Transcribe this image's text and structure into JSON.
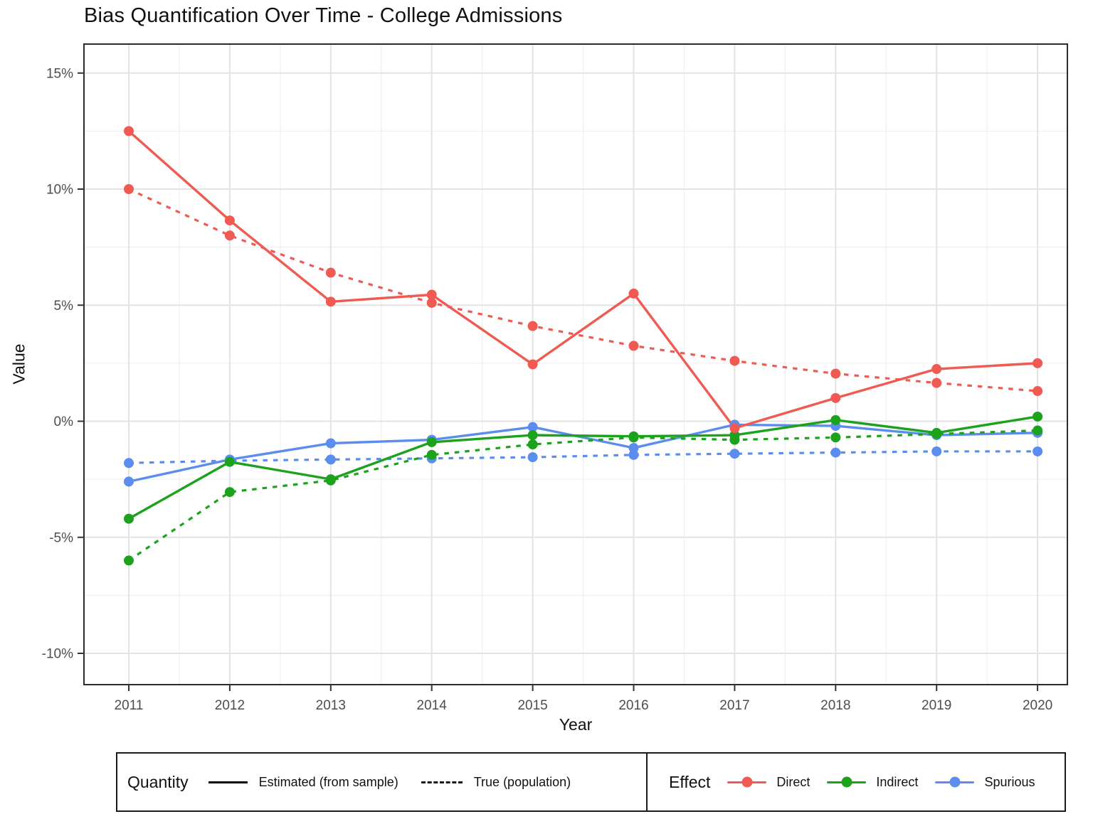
{
  "title": "Bias Quantification Over Time - College Admissions",
  "axes": {
    "x_title": "Year",
    "y_title": "Value"
  },
  "chart_data": {
    "type": "line",
    "title": "Bias Quantification Over Time - College Admissions",
    "xlabel": "Year",
    "ylabel": "Value",
    "x": [
      2011,
      2012,
      2013,
      2014,
      2015,
      2016,
      2017,
      2018,
      2019,
      2020
    ],
    "x_tick_labels": [
      "2011",
      "2012",
      "2013",
      "2014",
      "2015",
      "2016",
      "2017",
      "2018",
      "2019",
      "2020"
    ],
    "y_ticks": [
      15,
      10,
      5,
      0,
      -5,
      -10
    ],
    "y_tick_labels": [
      "15%",
      "10%",
      "5%",
      "0%",
      "-5%",
      "-10%"
    ],
    "ylim": [
      -11.4,
      16.3
    ],
    "grid": {
      "major": true,
      "minor": true
    },
    "legend_position": "bottom",
    "unit": "percent",
    "series": [
      {
        "effect": "Direct",
        "quantity": "Estimated (from sample)",
        "line": "solid",
        "color": "#EF5B52",
        "values": [
          12.5,
          8.65,
          5.15,
          5.45,
          2.45,
          5.5,
          -0.3,
          1.0,
          2.25,
          2.5
        ]
      },
      {
        "effect": "Direct",
        "quantity": "True (population)",
        "line": "dashed",
        "color": "#EF5B52",
        "values": [
          10.0,
          8.0,
          6.4,
          5.1,
          4.1,
          3.25,
          2.6,
          2.05,
          1.65,
          1.3
        ]
      },
      {
        "effect": "Indirect",
        "quantity": "Estimated (from sample)",
        "line": "solid",
        "color": "#1CA21C",
        "values": [
          -4.2,
          -1.75,
          -2.5,
          -0.9,
          -0.6,
          -0.65,
          -0.6,
          0.05,
          -0.5,
          0.2
        ]
      },
      {
        "effect": "Indirect",
        "quantity": "True (population)",
        "line": "dashed",
        "color": "#1CA21C",
        "values": [
          -6.0,
          -3.05,
          -2.55,
          -1.45,
          -1.0,
          -0.7,
          -0.8,
          -0.7,
          -0.55,
          -0.4
        ]
      },
      {
        "effect": "Spurious",
        "quantity": "Estimated (from sample)",
        "line": "solid",
        "color": "#5A8DEE",
        "values": [
          -2.6,
          -1.65,
          -0.95,
          -0.8,
          -0.25,
          -1.15,
          -0.15,
          -0.2,
          -0.6,
          -0.5
        ]
      },
      {
        "effect": "Spurious",
        "quantity": "True (population)",
        "line": "dashed",
        "color": "#5A8DEE",
        "values": [
          -1.8,
          -1.7,
          -1.65,
          -1.6,
          -1.55,
          -1.45,
          -1.4,
          -1.35,
          -1.3,
          -1.3
        ]
      }
    ]
  },
  "legend": {
    "quantity": {
      "title": "Quantity",
      "items": [
        {
          "label": "Estimated (from sample)",
          "style": "solid"
        },
        {
          "label": "True (population)",
          "style": "dashed"
        }
      ]
    },
    "effect": {
      "title": "Effect",
      "items": [
        {
          "label": "Direct",
          "color": "#EF5B52"
        },
        {
          "label": "Indirect",
          "color": "#1CA21C"
        },
        {
          "label": "Spurious",
          "color": "#5A8DEE"
        }
      ]
    }
  },
  "colors": {
    "grid_major": "#E3E3E3",
    "grid_minor": "#F0F0F0",
    "panel_border": "#2b2b2b",
    "tick_label": "#4D4D4D"
  }
}
